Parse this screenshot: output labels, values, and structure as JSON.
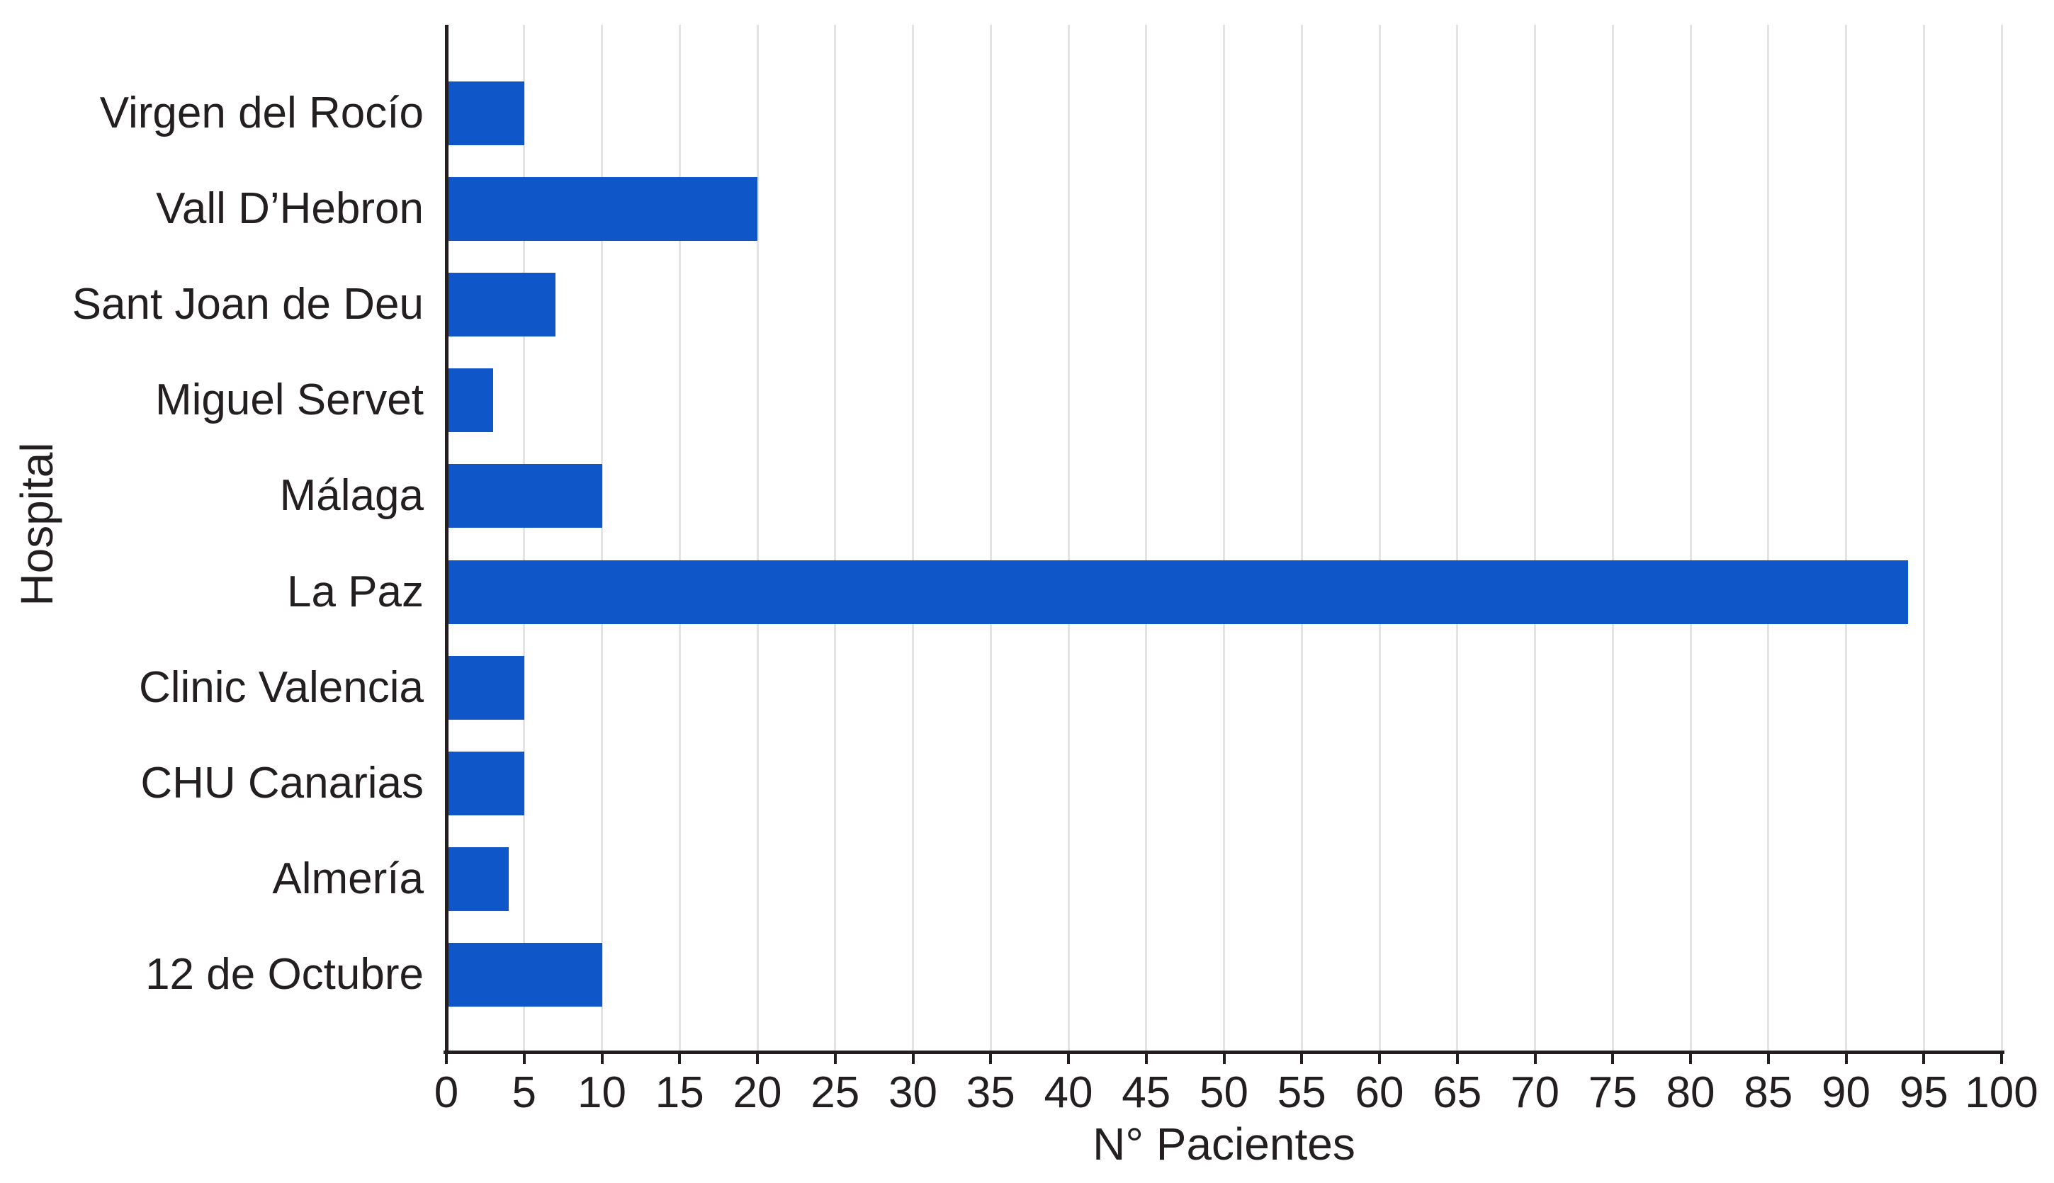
{
  "chart_data": {
    "type": "bar",
    "orientation": "horizontal",
    "title": "",
    "xlabel": "N° Pacientes",
    "ylabel": "Hospital",
    "categories": [
      "Virgen del Rocío",
      "Vall D’Hebron",
      "Sant Joan de Deu",
      "Miguel Servet",
      "Málaga",
      "La Paz",
      "Clinic Valencia",
      "CHU Canarias",
      "Almería",
      "12 de Octubre"
    ],
    "values": [
      5,
      20,
      7,
      3,
      10,
      94,
      5,
      5,
      4,
      10
    ],
    "xlim": [
      0,
      100
    ],
    "xticks": [
      0,
      5,
      10,
      15,
      20,
      25,
      30,
      35,
      40,
      45,
      50,
      55,
      60,
      65,
      70,
      75,
      80,
      85,
      90,
      95,
      100
    ],
    "grid": "vertical-gridlines-at-each-xtick",
    "legend": "none",
    "colors": {
      "bar": "#0F57C9",
      "axis": "#231F20",
      "text": "#231F20",
      "grid": "#E3E3E3",
      "background": "#FFFFFF"
    }
  }
}
